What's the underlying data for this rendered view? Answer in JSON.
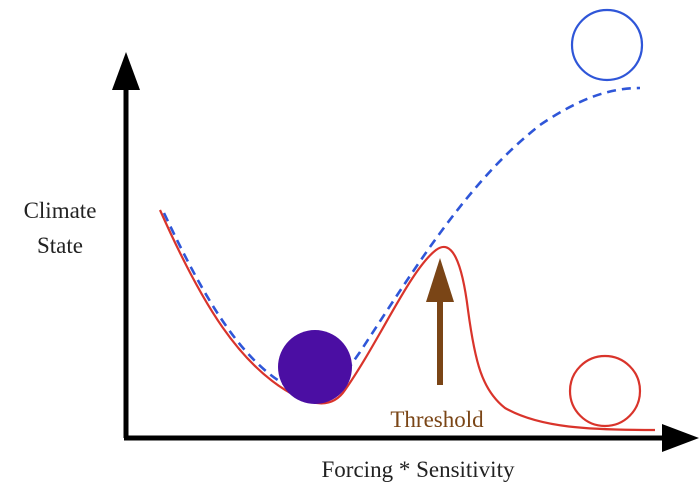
{
  "labels": {
    "y_axis_line1": "Climate",
    "y_axis_line2": "State",
    "x_axis": "Forcing * Sensitivity",
    "threshold": "Threshold"
  },
  "colors": {
    "axis": "#000000",
    "landscape_solid": "#d9342b",
    "landscape_dashed": "#2f56d8",
    "ball": "#4b0ea3",
    "threshold_arrow": "#7a4516",
    "threshold_text": "#7a4516",
    "high_state_circle": "#2f56d8",
    "low_state_circle": "#d9342b"
  }
}
